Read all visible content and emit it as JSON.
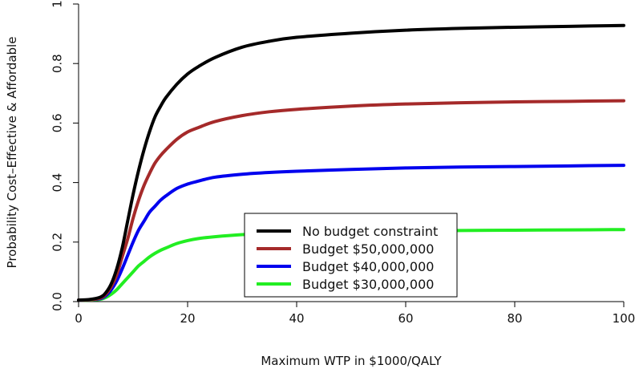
{
  "chart_data": {
    "type": "line",
    "title": "",
    "xlabel": "Maximum WTP in $1000/QALY",
    "ylabel": "Probability Cost–Effective & Affordable",
    "xlim": [
      0,
      100
    ],
    "ylim": [
      0,
      1
    ],
    "x_ticks": [
      "0",
      "20",
      "40",
      "60",
      "80",
      "100"
    ],
    "y_ticks": [
      "0.0",
      "0.2",
      "0.4",
      "0.6",
      "0.8",
      "1"
    ],
    "grid": false,
    "legend_position": "bottom-center",
    "x": [
      0,
      2,
      4,
      5,
      6,
      7,
      8,
      9,
      10,
      11,
      12,
      13,
      14,
      15,
      16,
      18,
      20,
      22,
      25,
      30,
      35,
      40,
      50,
      60,
      70,
      80,
      90,
      100
    ],
    "series": [
      {
        "name": "No budget constraint",
        "color": "#000000",
        "values": [
          0.005,
          0.007,
          0.015,
          0.03,
          0.06,
          0.11,
          0.18,
          0.27,
          0.36,
          0.44,
          0.51,
          0.57,
          0.62,
          0.655,
          0.685,
          0.73,
          0.765,
          0.79,
          0.82,
          0.855,
          0.875,
          0.888,
          0.902,
          0.912,
          0.918,
          0.922,
          0.925,
          0.928
        ]
      },
      {
        "name": "Budget $50,000,000",
        "color": "#a52a2a",
        "values": [
          0.005,
          0.006,
          0.012,
          0.025,
          0.05,
          0.09,
          0.15,
          0.21,
          0.28,
          0.34,
          0.39,
          0.43,
          0.465,
          0.49,
          0.51,
          0.545,
          0.57,
          0.585,
          0.605,
          0.625,
          0.638,
          0.646,
          0.657,
          0.664,
          0.668,
          0.671,
          0.673,
          0.675
        ]
      },
      {
        "name": "Budget $40,000,000",
        "color": "#0000ee",
        "values": [
          0.005,
          0.006,
          0.01,
          0.02,
          0.04,
          0.07,
          0.11,
          0.155,
          0.2,
          0.24,
          0.27,
          0.3,
          0.32,
          0.34,
          0.355,
          0.38,
          0.395,
          0.405,
          0.418,
          0.428,
          0.434,
          0.438,
          0.444,
          0.449,
          0.452,
          0.454,
          0.456,
          0.458
        ]
      },
      {
        "name": "Budget $30,000,000",
        "color": "#22ee22",
        "values": [
          0.005,
          0.005,
          0.008,
          0.014,
          0.025,
          0.04,
          0.06,
          0.08,
          0.1,
          0.12,
          0.135,
          0.15,
          0.162,
          0.172,
          0.18,
          0.195,
          0.205,
          0.212,
          0.218,
          0.225,
          0.229,
          0.232,
          0.235,
          0.237,
          0.239,
          0.24,
          0.241,
          0.242
        ]
      }
    ]
  }
}
